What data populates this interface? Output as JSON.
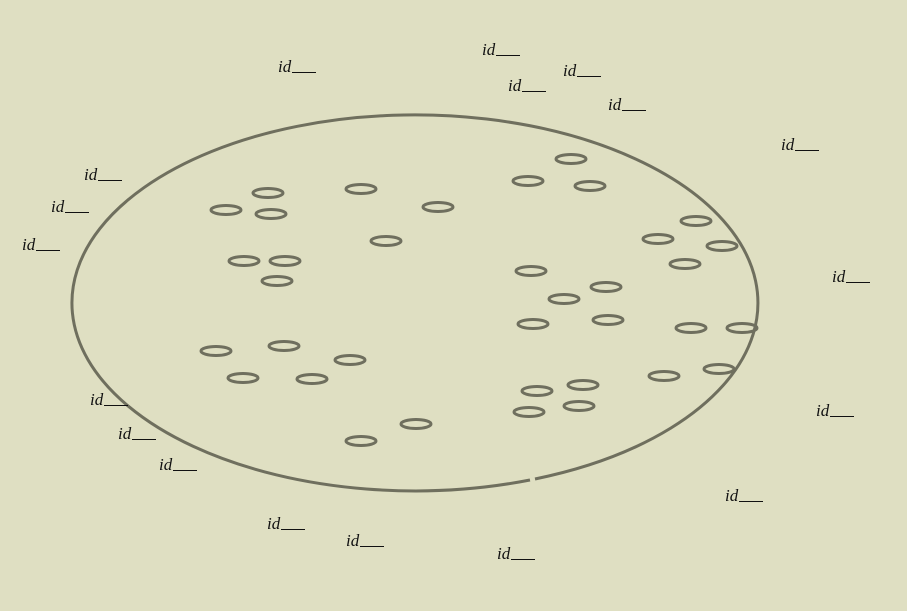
{
  "labels": {
    "id_prefix": "id",
    "items": [
      {
        "name": "label-1"
      },
      {
        "name": "label-2"
      },
      {
        "name": "label-3"
      },
      {
        "name": "label-4"
      },
      {
        "name": "label-5"
      },
      {
        "name": "label-6"
      },
      {
        "name": "label-7"
      },
      {
        "name": "label-8"
      },
      {
        "name": "label-9"
      },
      {
        "name": "label-10"
      },
      {
        "name": "label-11"
      },
      {
        "name": "label-12"
      },
      {
        "name": "label-13"
      },
      {
        "name": "label-14"
      },
      {
        "name": "label-15"
      },
      {
        "name": "label-16"
      },
      {
        "name": "label-17"
      },
      {
        "name": "label-18"
      },
      {
        "name": "label-19"
      },
      {
        "name": "label-20"
      }
    ]
  },
  "colors": {
    "background": "#dfdfc2",
    "outline": "#6f6f5e",
    "label_text": "#111111"
  }
}
